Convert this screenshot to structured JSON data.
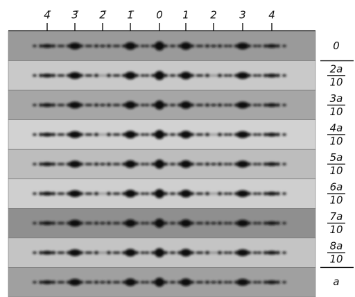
{
  "figure": {
    "orders": [
      "4̄",
      "3̄",
      "2̄",
      "1̄",
      "0",
      "1",
      "2",
      "3",
      "4"
    ],
    "rows": [
      {
        "label": "0"
      },
      {
        "numerator": "2a",
        "denominator": "10"
      },
      {
        "numerator": "3a",
        "denominator": "10"
      },
      {
        "numerator": "4a",
        "denominator": "10"
      },
      {
        "numerator": "5a",
        "denominator": "10"
      },
      {
        "numerator": "6a",
        "denominator": "10"
      },
      {
        "numerator": "7a",
        "denominator": "10"
      },
      {
        "numerator": "8a",
        "denominator": "10"
      },
      {
        "label": "a"
      }
    ]
  }
}
